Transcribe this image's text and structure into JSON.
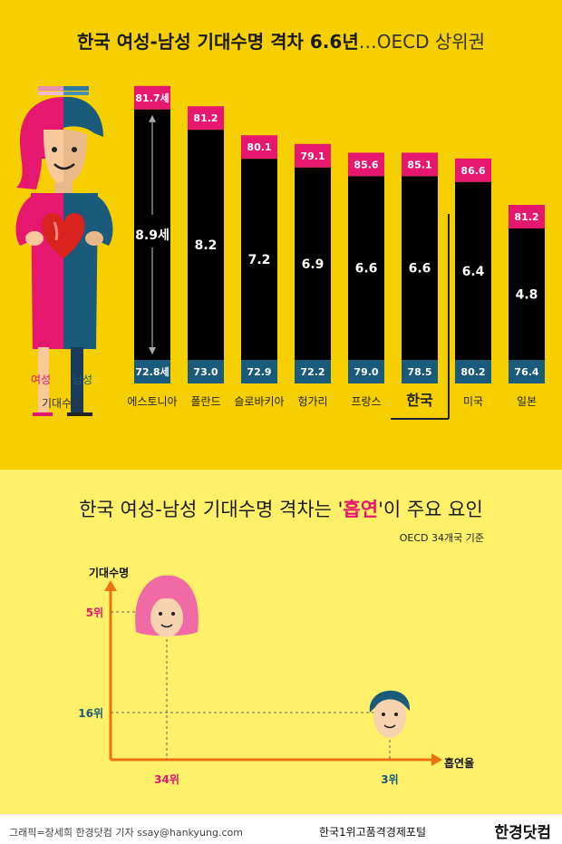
{
  "header": {
    "title_main": "한국 여성-남성 기대수명 격차 6.6년",
    "title_sub": "…OECD 상위권"
  },
  "legend": {
    "female_label": "여성",
    "male_label": "남성",
    "caption": "기대수명"
  },
  "colors": {
    "top_bg": "#f6cf00",
    "bottom_bg": "#fff06a",
    "female": "#e5176e",
    "male": "#1a5a7a",
    "bar": "#000000",
    "axis": "#e8720c"
  },
  "chart_data": [
    {
      "type": "bar",
      "title": "한국 여성-남성 기대수명 격차 6.6년…OECD 상위권",
      "categories": [
        "에스토니아",
        "폴란드",
        "슬로바키아",
        "헝가리",
        "프랑스",
        "한국",
        "미국",
        "일본"
      ],
      "highlight": "한국",
      "female_labels": [
        "81.7세",
        "81.2",
        "80.1",
        "79.1",
        "85.6",
        "85.1",
        "86.6",
        "81.2"
      ],
      "male_labels": [
        "72.8세",
        "73.0",
        "72.9",
        "72.2",
        "79.0",
        "78.5",
        "80.2",
        "76.4"
      ],
      "gap_labels": [
        "8.9세",
        "8.2",
        "7.2",
        "6.9",
        "6.6",
        "6.6",
        "6.4",
        "4.8"
      ],
      "female": [
        81.7,
        81.2,
        80.1,
        79.1,
        85.6,
        85.1,
        86.6,
        81.2
      ],
      "male": [
        72.8,
        73.0,
        72.9,
        72.2,
        79.0,
        78.5,
        80.2,
        76.4
      ],
      "gap": [
        8.9,
        8.2,
        7.2,
        6.9,
        6.6,
        6.6,
        6.4,
        4.8
      ]
    },
    {
      "type": "scatter",
      "title": "한국 여성-남성 기대수명 격차는 '흡연'이 주요 요인",
      "note": "OECD 34개국 기준",
      "ylabel": "기대수명",
      "xlabel": "흡연율",
      "points": [
        {
          "group": "female",
          "x_label": "34위",
          "y_label": "5위",
          "x_rank": 34,
          "y_rank": 5
        },
        {
          "group": "male",
          "x_label": "3위",
          "y_label": "16위",
          "x_rank": 3,
          "y_rank": 16
        }
      ]
    }
  ],
  "footer": {
    "credit": "그래픽=장세희 한경닷컴 기자 ssay@hankyung.com",
    "portal": "한국1위고품격경제포털",
    "logo": "한경닷컴"
  }
}
